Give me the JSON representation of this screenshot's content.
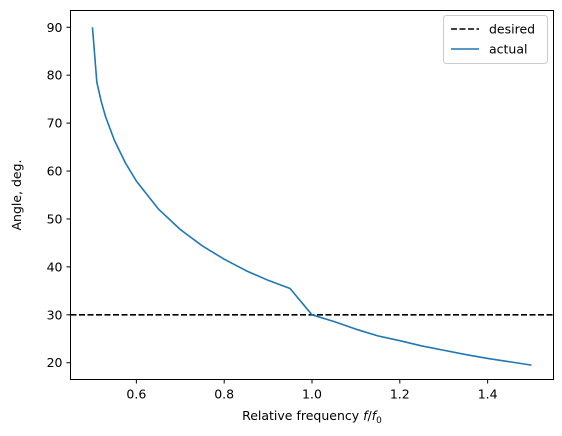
{
  "chart_data": {
    "type": "line",
    "xlabel": "Relative frequency",
    "xlabel_math": {
      "f": "f",
      "slash": "/",
      "f0_base": "f",
      "f0_sub": "0"
    },
    "ylabel": "Angle, deg.",
    "xlim": [
      0.45,
      1.55
    ],
    "ylim": [
      16.5,
      93.5
    ],
    "xticks": [
      0.6,
      0.8,
      1.0,
      1.2,
      1.4
    ],
    "xtick_labels": [
      "0.6",
      "0.8",
      "1.0",
      "1.2",
      "1.4"
    ],
    "yticks": [
      20,
      30,
      40,
      50,
      60,
      70,
      80,
      90
    ],
    "ytick_labels": [
      "20",
      "30",
      "40",
      "50",
      "60",
      "70",
      "80",
      "90"
    ],
    "grid": false,
    "legend_position": "top-right",
    "series": [
      {
        "name": "desired",
        "style": "dashed",
        "color": "#000000",
        "kind": "hline",
        "y": 30
      },
      {
        "name": "actual",
        "style": "solid",
        "color": "#1f77b4",
        "x": [
          0.5,
          0.51,
          0.52,
          0.53,
          0.55,
          0.575,
          0.6,
          0.65,
          0.7,
          0.75,
          0.8,
          0.85,
          0.9,
          0.95,
          1.0,
          1.05,
          1.1,
          1.15,
          1.2,
          1.25,
          1.3,
          1.35,
          1.4,
          1.45,
          1.5
        ],
        "y": [
          90.0,
          78.5,
          74.5,
          71.3,
          66.4,
          61.7,
          57.9,
          52.1,
          47.8,
          44.4,
          41.6,
          39.2,
          37.2,
          35.5,
          30.0,
          28.6,
          27.0,
          25.6,
          24.6,
          23.5,
          22.6,
          21.7,
          20.9,
          20.2,
          19.5
        ]
      }
    ]
  }
}
